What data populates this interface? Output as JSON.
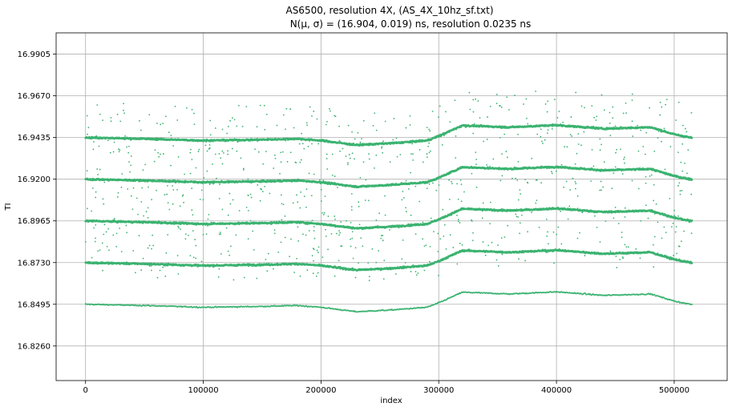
{
  "chart_data": {
    "type": "scatter",
    "title_line1": "AS6500, resolution 4X, (AS_4X_10hz_sf.txt)",
    "title_line2": "N(μ, σ) = (16.904, 0.019) ns, resolution 0.0235 ns",
    "xlabel": "index",
    "ylabel": "TI",
    "xlim": [
      -25000,
      545000
    ],
    "ylim": [
      16.8065,
      17.0025
    ],
    "x_ticks": [
      0,
      100000,
      200000,
      300000,
      400000,
      500000
    ],
    "x_tick_labels": [
      "0",
      "100000",
      "200000",
      "300000",
      "400000",
      "500000"
    ],
    "y_ticks": [
      16.826,
      16.8495,
      16.873,
      16.8965,
      16.92,
      16.9435,
      16.967,
      16.9905
    ],
    "y_tick_labels": [
      "16.8260",
      "16.8495",
      "16.8730",
      "16.8965",
      "16.9200",
      "16.9435",
      "16.9670",
      "16.9905"
    ],
    "grid": true,
    "marker_color": "#3cb371",
    "x_range": [
      0,
      515000
    ],
    "series": [
      {
        "band_center": 16.8495,
        "points": [
          [
            0,
            16.8495
          ],
          [
            50000,
            16.8488
          ],
          [
            100000,
            16.8478
          ],
          [
            150000,
            16.8483
          ],
          [
            180000,
            16.8488
          ],
          [
            200000,
            16.8478
          ],
          [
            230000,
            16.8453
          ],
          [
            260000,
            16.8463
          ],
          [
            290000,
            16.8478
          ],
          [
            300000,
            16.8503
          ],
          [
            320000,
            16.8563
          ],
          [
            360000,
            16.8553
          ],
          [
            400000,
            16.8565
          ],
          [
            420000,
            16.8555
          ],
          [
            440000,
            16.8545
          ],
          [
            480000,
            16.8553
          ],
          [
            500000,
            16.8513
          ],
          [
            515000,
            16.8493
          ]
        ]
      },
      {
        "band_center": 16.873,
        "points": [
          [
            0,
            16.873
          ],
          [
            50000,
            16.8723
          ],
          [
            100000,
            16.8713
          ],
          [
            150000,
            16.8718
          ],
          [
            180000,
            16.8723
          ],
          [
            200000,
            16.8713
          ],
          [
            230000,
            16.8688
          ],
          [
            260000,
            16.8698
          ],
          [
            290000,
            16.8713
          ],
          [
            300000,
            16.8738
          ],
          [
            320000,
            16.8798
          ],
          [
            360000,
            16.8788
          ],
          [
            400000,
            16.88
          ],
          [
            420000,
            16.879
          ],
          [
            440000,
            16.878
          ],
          [
            480000,
            16.8788
          ],
          [
            500000,
            16.8748
          ],
          [
            515000,
            16.8728
          ]
        ]
      },
      {
        "band_center": 16.8965,
        "points": [
          [
            0,
            16.8965
          ],
          [
            50000,
            16.8958
          ],
          [
            100000,
            16.8948
          ],
          [
            150000,
            16.8953
          ],
          [
            180000,
            16.8958
          ],
          [
            200000,
            16.8948
          ],
          [
            230000,
            16.8923
          ],
          [
            260000,
            16.8933
          ],
          [
            290000,
            16.8948
          ],
          [
            300000,
            16.8973
          ],
          [
            320000,
            16.9033
          ],
          [
            360000,
            16.9023
          ],
          [
            400000,
            16.9035
          ],
          [
            420000,
            16.9025
          ],
          [
            440000,
            16.9015
          ],
          [
            480000,
            16.9023
          ],
          [
            500000,
            16.8983
          ],
          [
            515000,
            16.8963
          ]
        ]
      },
      {
        "band_center": 16.92,
        "points": [
          [
            0,
            16.92
          ],
          [
            50000,
            16.9193
          ],
          [
            100000,
            16.9183
          ],
          [
            150000,
            16.9188
          ],
          [
            180000,
            16.9193
          ],
          [
            200000,
            16.9183
          ],
          [
            230000,
            16.9158
          ],
          [
            260000,
            16.9168
          ],
          [
            290000,
            16.9183
          ],
          [
            300000,
            16.9208
          ],
          [
            320000,
            16.9268
          ],
          [
            360000,
            16.9258
          ],
          [
            400000,
            16.927
          ],
          [
            420000,
            16.926
          ],
          [
            440000,
            16.925
          ],
          [
            480000,
            16.9258
          ],
          [
            500000,
            16.9218
          ],
          [
            515000,
            16.9198
          ]
        ]
      },
      {
        "band_center": 16.9435,
        "points": [
          [
            0,
            16.9435
          ],
          [
            50000,
            16.9428
          ],
          [
            100000,
            16.9418
          ],
          [
            150000,
            16.9423
          ],
          [
            180000,
            16.9428
          ],
          [
            200000,
            16.9418
          ],
          [
            230000,
            16.9393
          ],
          [
            260000,
            16.9403
          ],
          [
            290000,
            16.9418
          ],
          [
            300000,
            16.9443
          ],
          [
            320000,
            16.9503
          ],
          [
            360000,
            16.9493
          ],
          [
            400000,
            16.9505
          ],
          [
            420000,
            16.9495
          ],
          [
            440000,
            16.9485
          ],
          [
            480000,
            16.9493
          ],
          [
            500000,
            16.9453
          ],
          [
            515000,
            16.9433
          ]
        ]
      }
    ]
  }
}
